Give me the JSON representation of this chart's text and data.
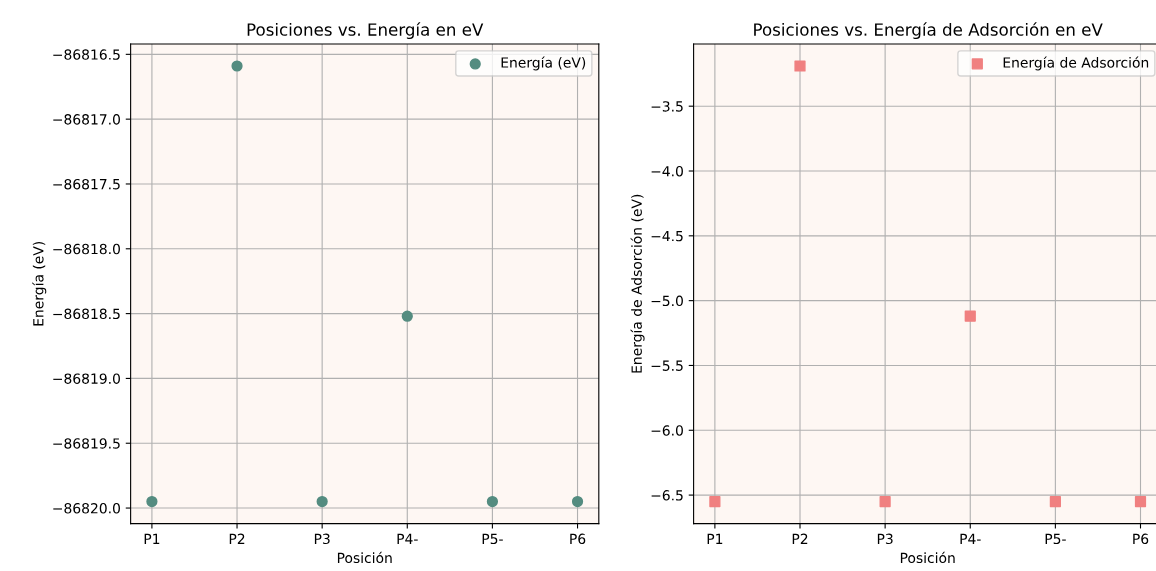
{
  "chart_data": [
    {
      "type": "scatter",
      "title": "Posiciones vs. Energía en eV",
      "xlabel": "Posición",
      "ylabel": "Energía (eV)",
      "categories": [
        "P1",
        "P2",
        "P3",
        "P4-",
        "P5-",
        "P6"
      ],
      "series": [
        {
          "name": "Energía (eV)",
          "color": "#548c80",
          "values": [
            -86819.95,
            -86816.59,
            -86819.95,
            -86818.52,
            -86819.95,
            -86819.95
          ]
        }
      ],
      "ylim": [
        -86820.12,
        -86816.42
      ],
      "yticks": [
        {
          "value": -86820.0,
          "label": "−86820.0"
        },
        {
          "value": -86819.5,
          "label": "−86819.5"
        },
        {
          "value": -86819.0,
          "label": "−86819.0"
        },
        {
          "value": -86818.5,
          "label": "−86818.5"
        },
        {
          "value": -86818.0,
          "label": "−86818.0"
        },
        {
          "value": -86817.5,
          "label": "−86817.5"
        },
        {
          "value": -86817.0,
          "label": "−86817.0"
        },
        {
          "value": -86816.5,
          "label": "−86816.5"
        }
      ],
      "grid": true,
      "legend": "top right",
      "marker": "circle"
    },
    {
      "type": "scatter",
      "title": "Posiciones vs. Energía de Adsorción en eV",
      "xlabel": "Posición",
      "ylabel": "Energía de Adsorción (eV)",
      "categories": [
        "P1",
        "P2",
        "P3",
        "P4-",
        "P5-",
        "P6"
      ],
      "series": [
        {
          "name": "Energía de Adsorción",
          "color": "#f08080",
          "values": [
            -6.55,
            -3.19,
            -6.55,
            -5.12,
            -6.55,
            -6.55
          ]
        }
      ],
      "ylim": [
        -6.72,
        -3.02
      ],
      "yticks": [
        {
          "value": -6.5,
          "label": "−6.5"
        },
        {
          "value": -6.0,
          "label": "−6.0"
        },
        {
          "value": -5.5,
          "label": "−5.5"
        },
        {
          "value": -5.0,
          "label": "−5.0"
        },
        {
          "value": -4.5,
          "label": "−4.5"
        },
        {
          "value": -4.0,
          "label": "−4.0"
        },
        {
          "value": -3.5,
          "label": "−3.5"
        }
      ],
      "grid": true,
      "legend": "top right",
      "marker": "square"
    }
  ]
}
